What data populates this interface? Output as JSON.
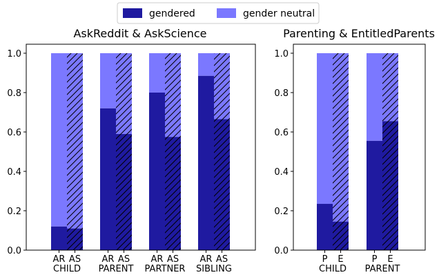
{
  "legend": {
    "placement": "top-center",
    "items": [
      {
        "label": "gendered",
        "color": "#1f1aa0"
      },
      {
        "label": "gender neutral",
        "color": "#7b78ff"
      }
    ]
  },
  "colors": {
    "gendered": "#1f1aa0",
    "neutral": "#7b78ff",
    "hatch": "#000000"
  },
  "chart_data": [
    {
      "type": "bar",
      "stacked": true,
      "title": "AskReddit & AskScience",
      "ylim": [
        0,
        1.0
      ],
      "yticks": [
        "0.0",
        "0.2",
        "0.4",
        "0.6",
        "0.8",
        "1.0"
      ],
      "groups": [
        {
          "label": "CHILD",
          "bars": [
            {
              "label": "AR",
              "gendered": 0.12,
              "hatched": false
            },
            {
              "label": "AS",
              "gendered": 0.11,
              "hatched": true
            }
          ]
        },
        {
          "label": "PARENT",
          "bars": [
            {
              "label": "AR",
              "gendered": 0.72,
              "hatched": false
            },
            {
              "label": "AS",
              "gendered": 0.59,
              "hatched": true
            }
          ]
        },
        {
          "label": "PARTNER",
          "bars": [
            {
              "label": "AR",
              "gendered": 0.8,
              "hatched": false
            },
            {
              "label": "AS",
              "gendered": 0.575,
              "hatched": true
            }
          ]
        },
        {
          "label": "SIBLING",
          "bars": [
            {
              "label": "AR",
              "gendered": 0.885,
              "hatched": false
            },
            {
              "label": "AS",
              "gendered": 0.665,
              "hatched": true
            }
          ]
        }
      ]
    },
    {
      "type": "bar",
      "stacked": true,
      "title": "Parenting & EntitledParents",
      "ylim": [
        0,
        1.0
      ],
      "yticks": [
        "0.0",
        "0.2",
        "0.4",
        "0.6",
        "0.8",
        "1.0"
      ],
      "groups": [
        {
          "label": "CHILD",
          "bars": [
            {
              "label": "P",
              "gendered": 0.235,
              "hatched": false
            },
            {
              "label": "E",
              "gendered": 0.145,
              "hatched": true
            }
          ]
        },
        {
          "label": "PARENT",
          "bars": [
            {
              "label": "P",
              "gendered": 0.555,
              "hatched": false
            },
            {
              "label": "E",
              "gendered": 0.655,
              "hatched": true
            }
          ]
        }
      ]
    }
  ]
}
